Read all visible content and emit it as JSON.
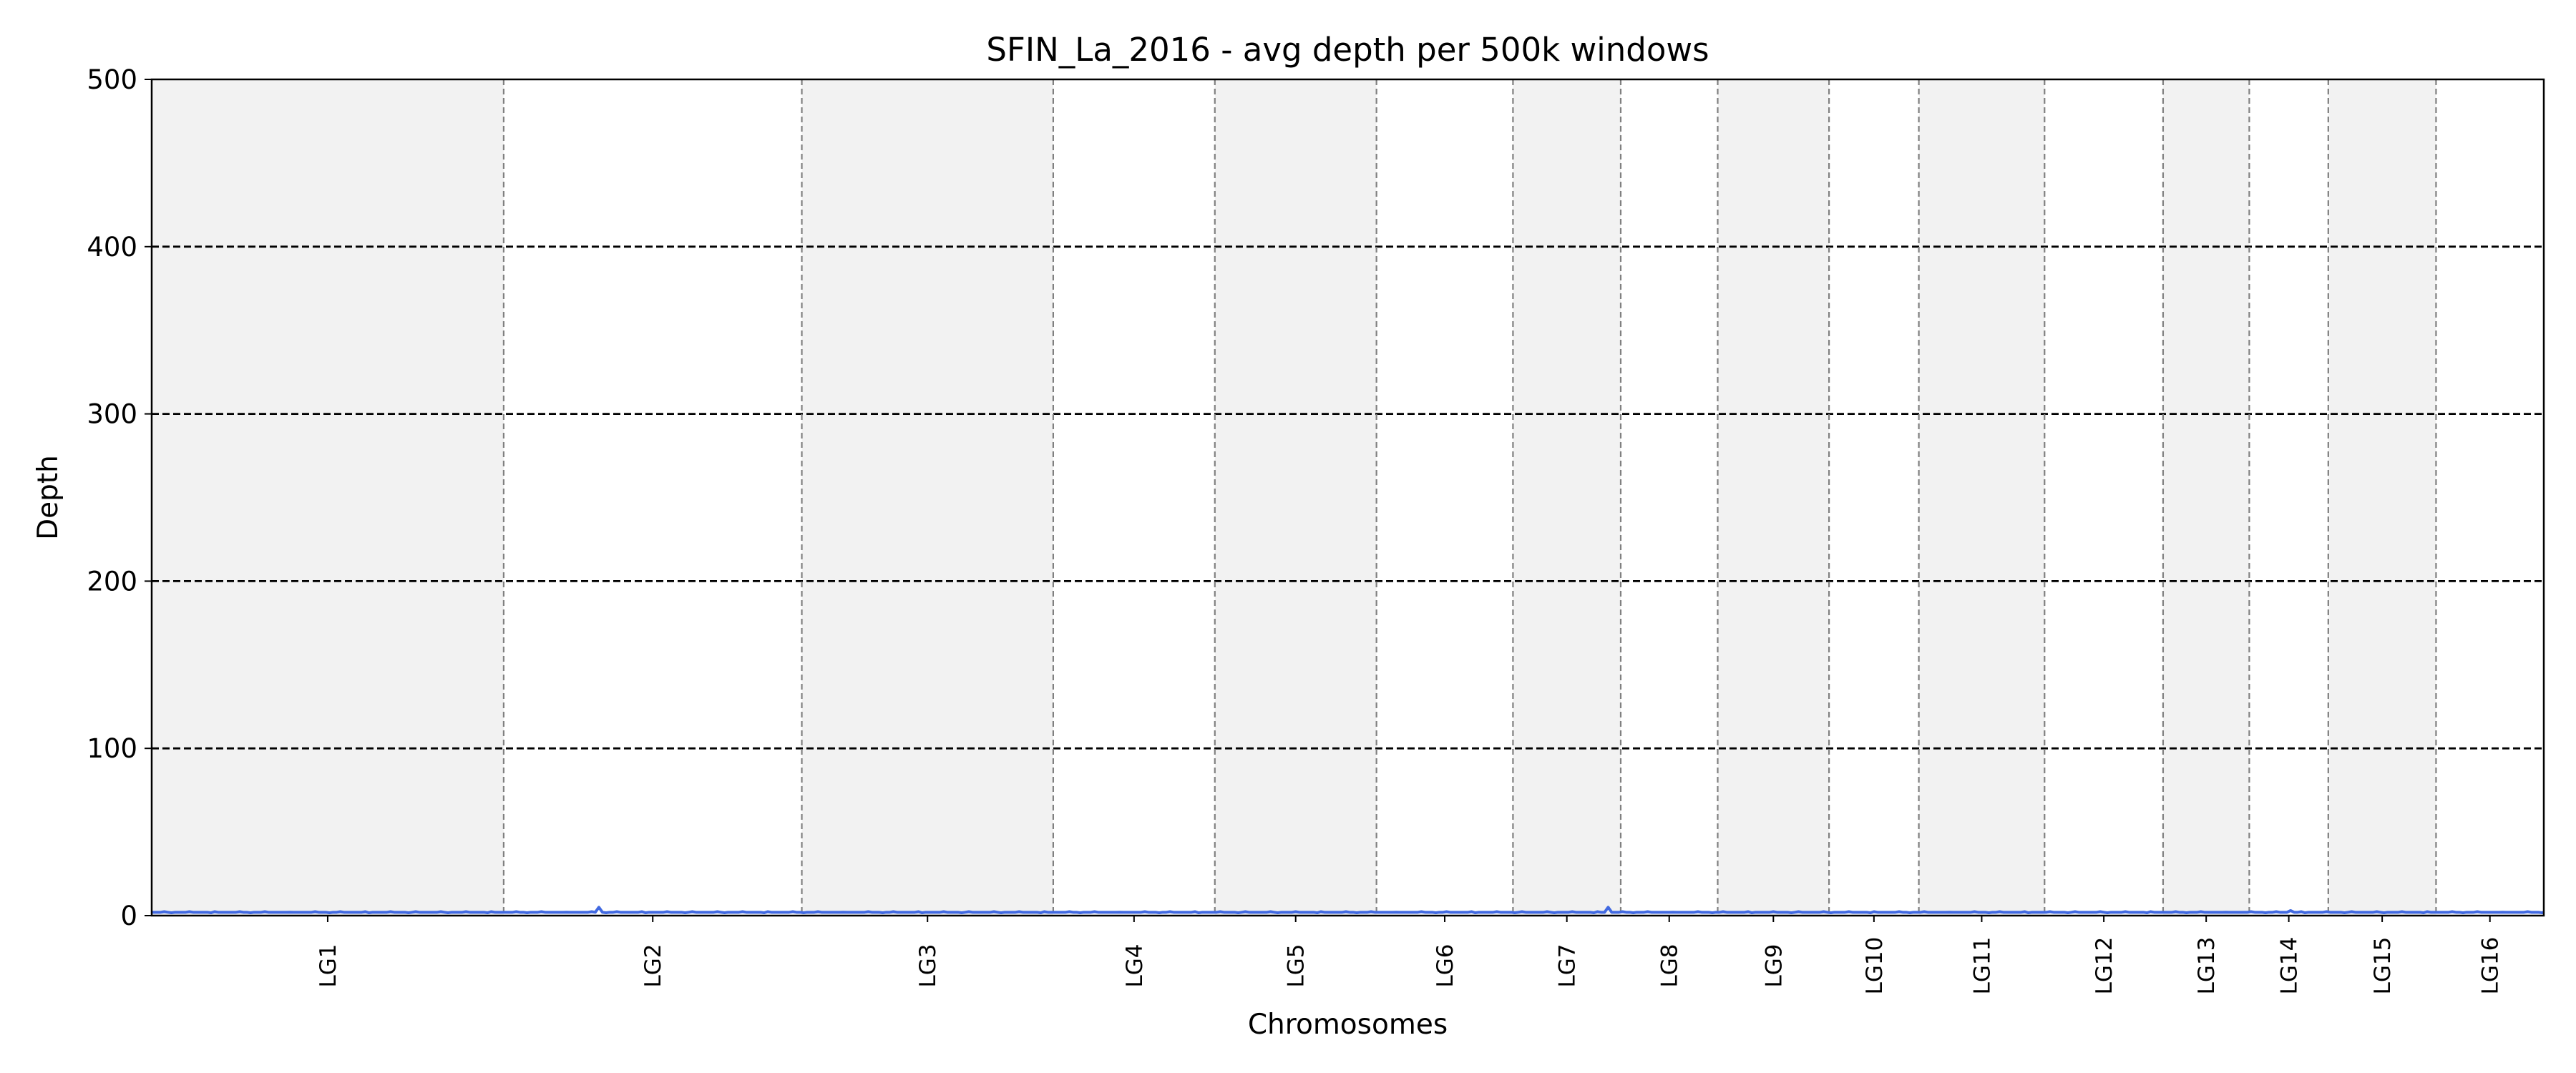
{
  "chart_data": {
    "type": "line",
    "title": "SFIN_La_2016 - avg depth per 500k windows",
    "xlabel": "Chromosomes",
    "ylabel": "Depth",
    "ylim": [
      0,
      500
    ],
    "yticks": [
      0,
      100,
      200,
      300,
      400,
      500
    ],
    "hlines": [
      100,
      200,
      300,
      400
    ],
    "grid": "horizontal dashed lines at 100, 200, 300, 400; dashed vertical lines at chromosome boundaries",
    "band_color": "#f2f2f2",
    "line_color": "#4169e1",
    "chromosomes": [
      {
        "name": "LG1",
        "windows": 98
      },
      {
        "name": "LG2",
        "windows": 83
      },
      {
        "name": "LG3",
        "windows": 70
      },
      {
        "name": "LG4",
        "windows": 45
      },
      {
        "name": "LG5",
        "windows": 45
      },
      {
        "name": "LG6",
        "windows": 38
      },
      {
        "name": "LG7",
        "windows": 30
      },
      {
        "name": "LG8",
        "windows": 27
      },
      {
        "name": "LG9",
        "windows": 31
      },
      {
        "name": "LG10",
        "windows": 25
      },
      {
        "name": "LG11",
        "windows": 35
      },
      {
        "name": "LG12",
        "windows": 33
      },
      {
        "name": "LG13",
        "windows": 24
      },
      {
        "name": "LG14",
        "windows": 22
      },
      {
        "name": "LG15",
        "windows": 30
      },
      {
        "name": "LG16",
        "windows": 30
      }
    ],
    "series": [
      {
        "baseline_depth": 2,
        "spikes": [
          {
            "chromosome": "LG2",
            "window": 26,
            "depth": 5
          },
          {
            "chromosome": "LG7",
            "window": 26,
            "depth": 5
          },
          {
            "chromosome": "LG14",
            "window": 11,
            "depth": 3
          }
        ]
      }
    ]
  }
}
